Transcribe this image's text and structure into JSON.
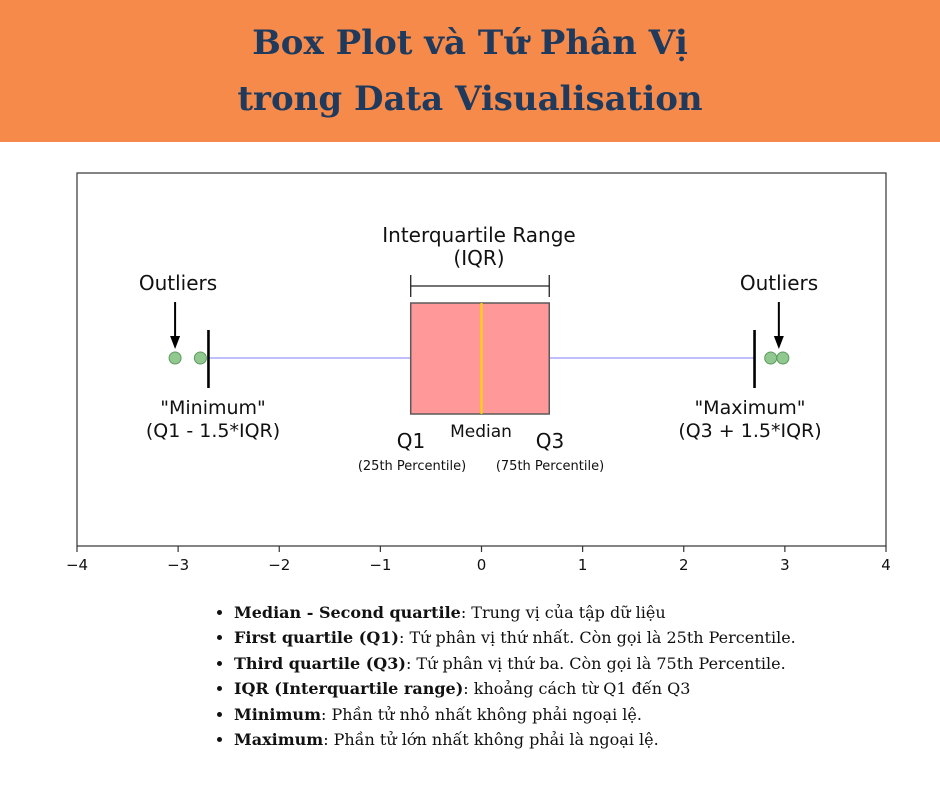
{
  "header": {
    "title_line1": "Box Plot và Tứ Phân Vị",
    "title_line2": "trong Data Visualisation",
    "background": "#f58a4b",
    "text_color": "#1f3a5c"
  },
  "chart_data": {
    "type": "boxplot",
    "orientation": "horizontal",
    "xlim": [
      -4,
      4
    ],
    "x_ticks": [
      -4,
      -3,
      -2,
      -1,
      0,
      1,
      2,
      3,
      4
    ],
    "x_tick_labels": [
      "−4",
      "−3",
      "−2",
      "−1",
      "0",
      "1",
      "2",
      "3",
      "4"
    ],
    "grid": false,
    "box": {
      "q1": -0.7,
      "median": 0,
      "q3": 0.67,
      "whisker_low": -2.7,
      "whisker_high": 2.7,
      "outliers": [
        -3.03,
        -2.78,
        2.86,
        2.98
      ]
    },
    "colors": {
      "box_fill": "#ff9999",
      "box_edge": "#5a5a5a",
      "median": "#ffd700",
      "whisker": "#aaaaff",
      "outlier_fill": "#90c890",
      "outlier_edge": "#5e9a5e"
    },
    "annotations": {
      "iqr_label_1": "Interquartile Range",
      "iqr_label_2": "(IQR)",
      "outliers_left": "Outliers",
      "outliers_right": "Outliers",
      "minimum_label_1": "\"Minimum\"",
      "minimum_label_2": "(Q1 - 1.5*IQR)",
      "maximum_label_1": "\"Maximum\"",
      "maximum_label_2": "(Q3 + 1.5*IQR)",
      "q1_label": "Q1",
      "q1_sub": "(25th Percentile)",
      "median_label": "Median",
      "q3_label": "Q3",
      "q3_sub": "(75th Percentile)"
    }
  },
  "notes": [
    {
      "term": "Median - Second quartile",
      "desc": ": Trung vị của tập dữ liệu"
    },
    {
      "term": "First quartile (Q1)",
      "desc": ": Tứ phân vị thứ nhất. Còn gọi là 25th Percentile."
    },
    {
      "term": "Third quartile (Q3)",
      "desc": ": Tứ phân vị thứ ba. Còn gọi là 75th Percentile."
    },
    {
      "term": "IQR (Interquartile range)",
      "desc": ": khoảng cách từ Q1 đến Q3"
    },
    {
      "term": "Minimum",
      "desc": ": Phần tử nhỏ nhất không phải ngoại lệ."
    },
    {
      "term": "Maximum",
      "desc": ": Phần tử lớn nhất không phải là ngoại lệ."
    }
  ]
}
